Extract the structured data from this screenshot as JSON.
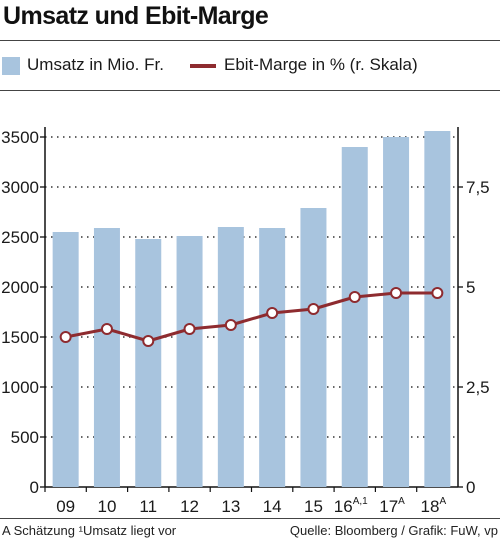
{
  "header": {
    "title": "Umsatz und Ebit-Marge"
  },
  "legend": {
    "bar_label": "Umsatz in Mio. Fr.",
    "line_label": "Ebit-Marge in % (r. Skala)"
  },
  "footer": {
    "footnote": "A Schätzung ¹Umsatz liegt vor",
    "source": "Quelle: Bloomberg / Grafik: FuW, vp"
  },
  "colors": {
    "bar": "#a8c4de",
    "line": "#8e2b2f",
    "grid": "#333333"
  },
  "chart_data": {
    "type": "bar",
    "title": "Umsatz und Ebit-Marge",
    "categories": [
      "09",
      "10",
      "11",
      "12",
      "13",
      "14",
      "15",
      "16",
      "17",
      "18"
    ],
    "category_superscripts": [
      "",
      "",
      "",
      "",
      "",
      "",
      "",
      "A,1",
      "A",
      "A"
    ],
    "series": [
      {
        "name": "Umsatz in Mio. Fr.",
        "type": "bar",
        "axis": "left",
        "values": [
          2550,
          2590,
          2480,
          2510,
          2600,
          2590,
          2790,
          3400,
          3500,
          3560
        ]
      },
      {
        "name": "Ebit-Marge in % (r. Skala)",
        "type": "line",
        "axis": "right",
        "values": [
          3.75,
          3.95,
          3.65,
          3.95,
          4.05,
          4.35,
          4.45,
          4.75,
          4.85,
          4.85
        ]
      }
    ],
    "y_left": {
      "lim": [
        0,
        3500
      ],
      "ticks": [
        0,
        500,
        1000,
        1500,
        2000,
        2500,
        3000,
        3500
      ]
    },
    "y_right": {
      "lim": [
        0,
        8.75
      ],
      "ticks": [
        "0",
        "2,5",
        "5",
        "7,5"
      ],
      "tick_values": [
        0,
        2.5,
        5,
        7.5
      ]
    },
    "grid": "dotted horizontal",
    "legend_position": "top"
  }
}
